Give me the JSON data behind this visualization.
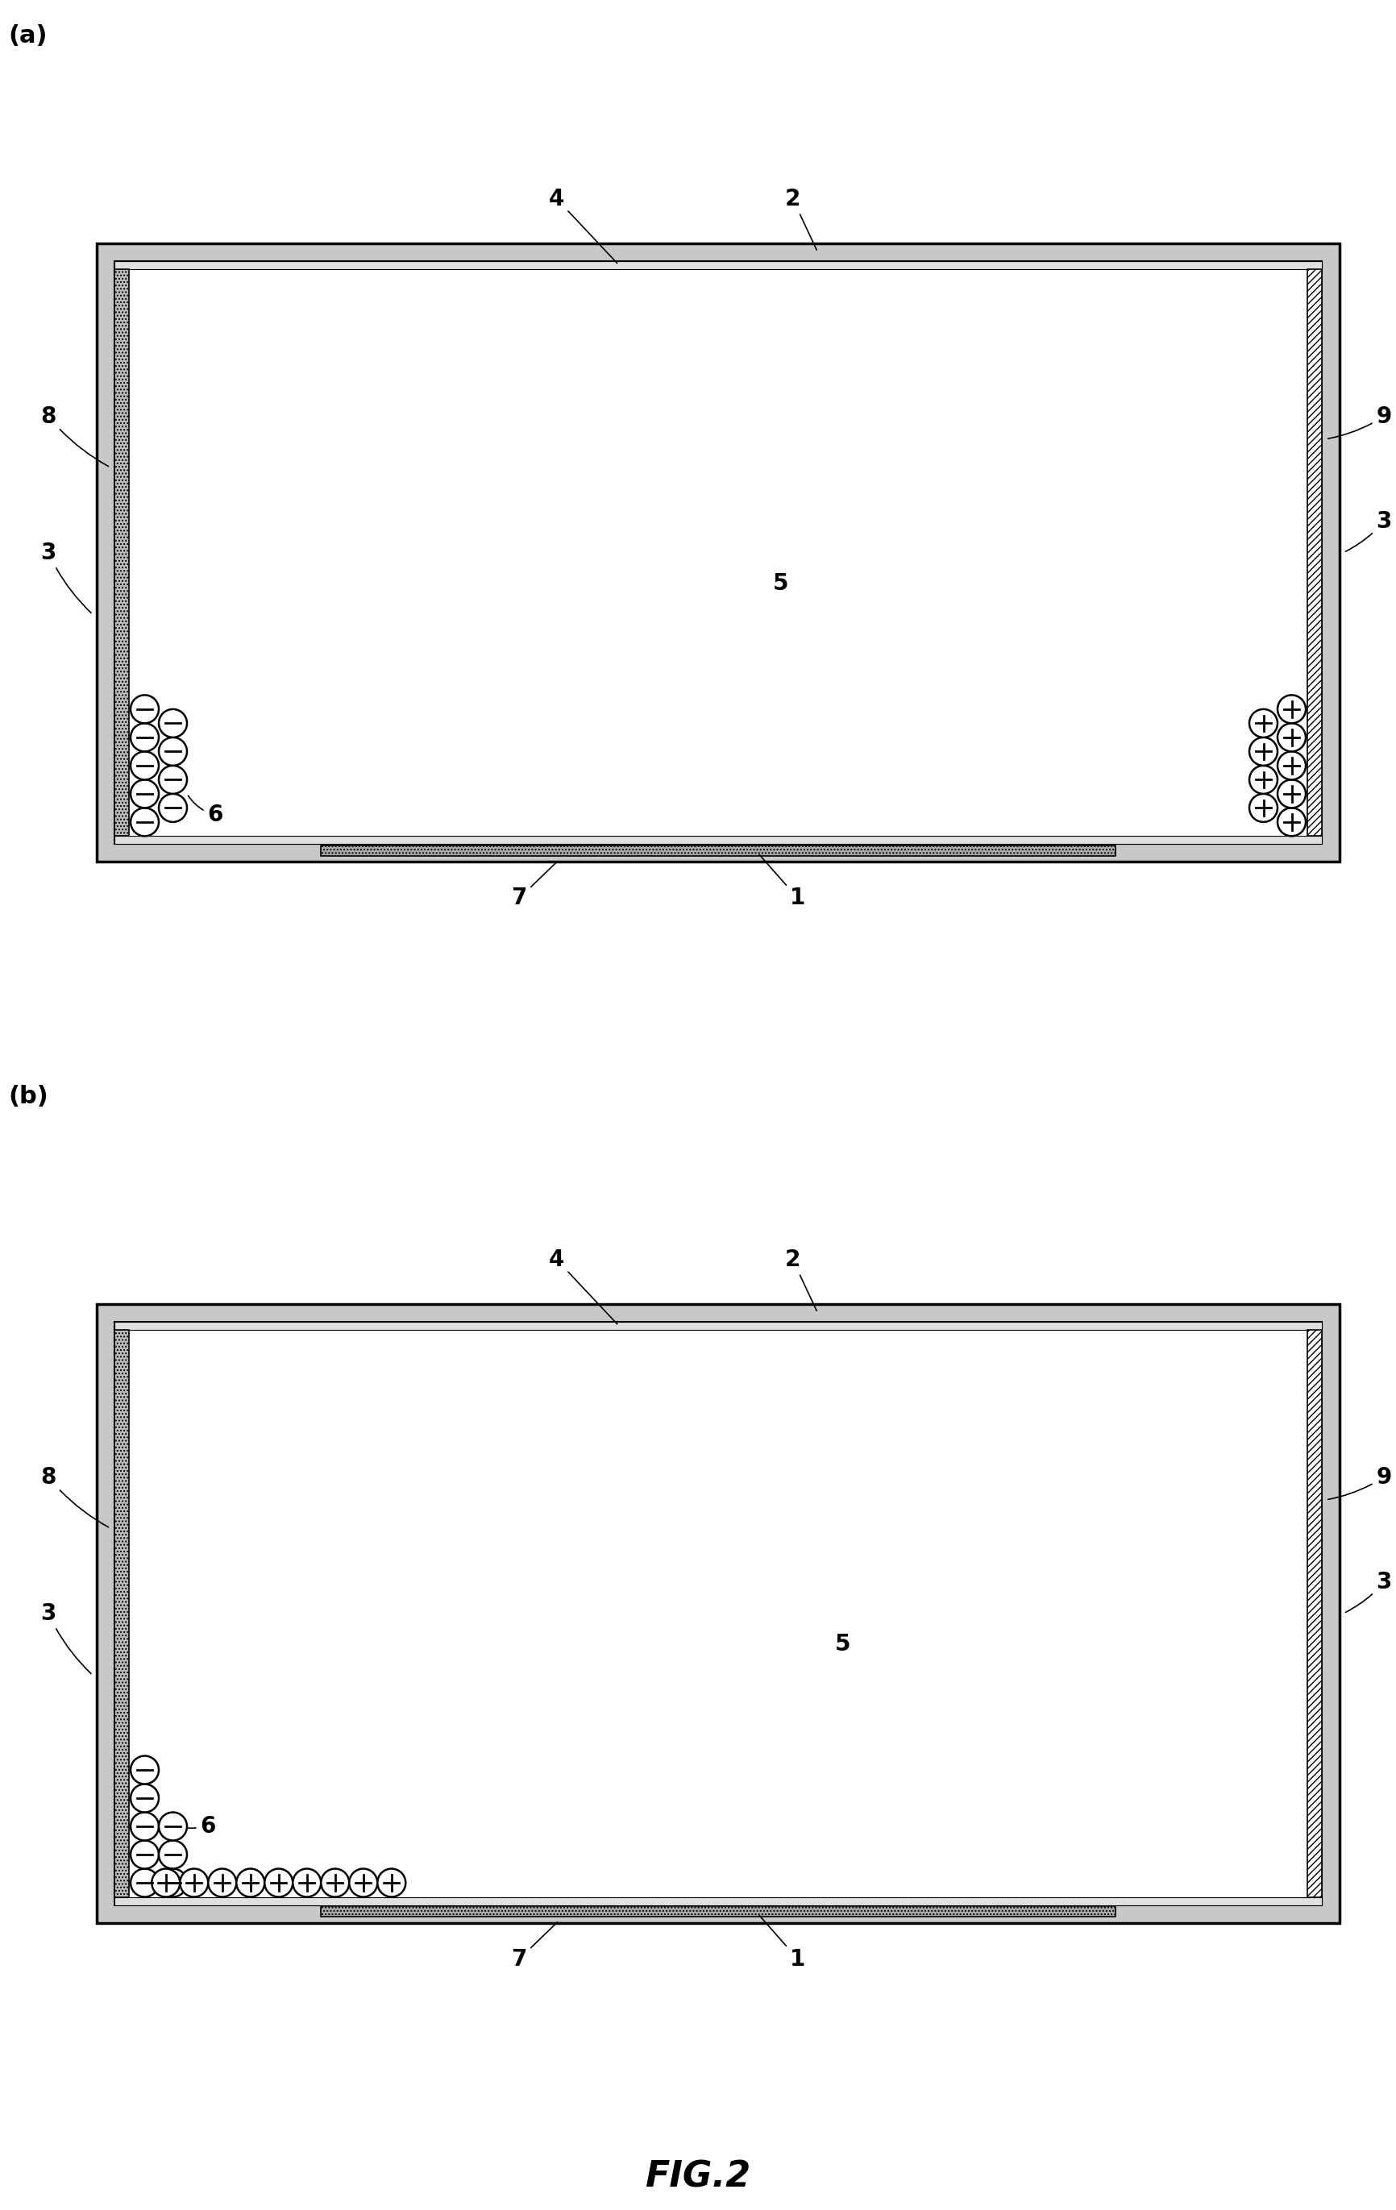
{
  "fig_width": 17.32,
  "fig_height": 27.42,
  "bg_color": "#ffffff",
  "panel_a_label": "(a)",
  "panel_b_label": "(b)",
  "fig_label": "FIG.2",
  "label_fontsize": 22,
  "fig_label_fontsize": 32,
  "annotation_fontsize": 20
}
